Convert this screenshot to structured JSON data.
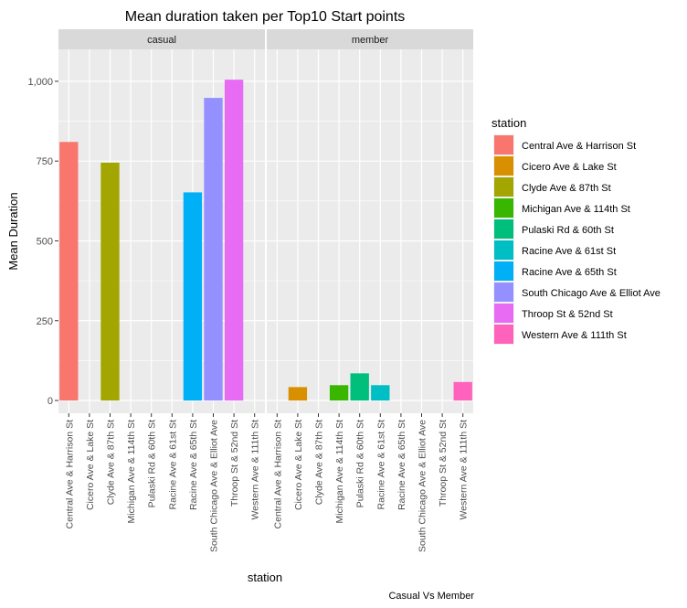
{
  "chart_data": {
    "type": "bar",
    "title": "Mean duration taken per Top10 Start points",
    "xlabel": "station",
    "ylabel": "Mean Duration",
    "caption": "Casual Vs Member",
    "ylim": [
      -40,
      1100
    ],
    "yticks": [
      0,
      250,
      500,
      750,
      1000
    ],
    "ytick_labels": [
      "0",
      "250",
      "500",
      "750",
      "1,000"
    ],
    "grid": true,
    "legend": {
      "title": "station",
      "position": "right"
    },
    "categories": [
      "Central Ave & Harrison St",
      "Cicero Ave & Lake St",
      "Clyde Ave & 87th St",
      "Michigan Ave & 114th St",
      "Pulaski Rd & 60th St",
      "Racine Ave & 61st St",
      "Racine Ave & 65th St",
      "South Chicago Ave & Elliot Ave",
      "Throop St & 52nd St",
      "Western Ave & 111th St"
    ],
    "colors": [
      "#F8766D",
      "#D89000",
      "#A3A500",
      "#39B600",
      "#00BF7D",
      "#00BFC4",
      "#00B0F6",
      "#9590FF",
      "#E76BF3",
      "#FF62BC"
    ],
    "panels": [
      {
        "name": "casual",
        "values": [
          810,
          null,
          745,
          null,
          null,
          null,
          652,
          948,
          1005,
          null
        ]
      },
      {
        "name": "member",
        "values": [
          null,
          42,
          null,
          48,
          85,
          48,
          null,
          null,
          null,
          58
        ]
      }
    ]
  }
}
